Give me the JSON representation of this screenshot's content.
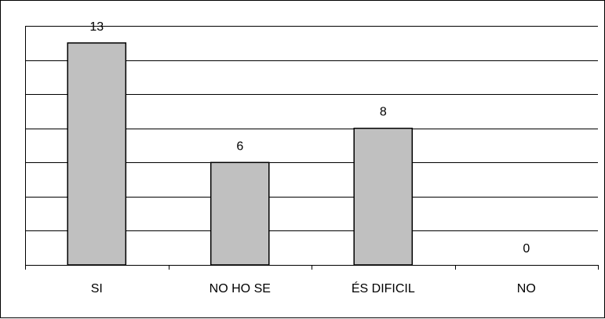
{
  "chart_data": {
    "type": "bar",
    "categories": [
      "SI",
      "NO HO SE",
      "ÉS DIFICIL",
      "NO"
    ],
    "values": [
      13,
      6,
      8,
      0
    ],
    "data_labels": [
      "13",
      "6",
      "8",
      "0"
    ],
    "ylim": [
      0,
      14
    ],
    "y_gridline_step": 2,
    "grid": true,
    "legend": "none",
    "bar_color": "#c0c0c0",
    "bar_edge_color": "#000000",
    "grid_color": "#000000"
  }
}
